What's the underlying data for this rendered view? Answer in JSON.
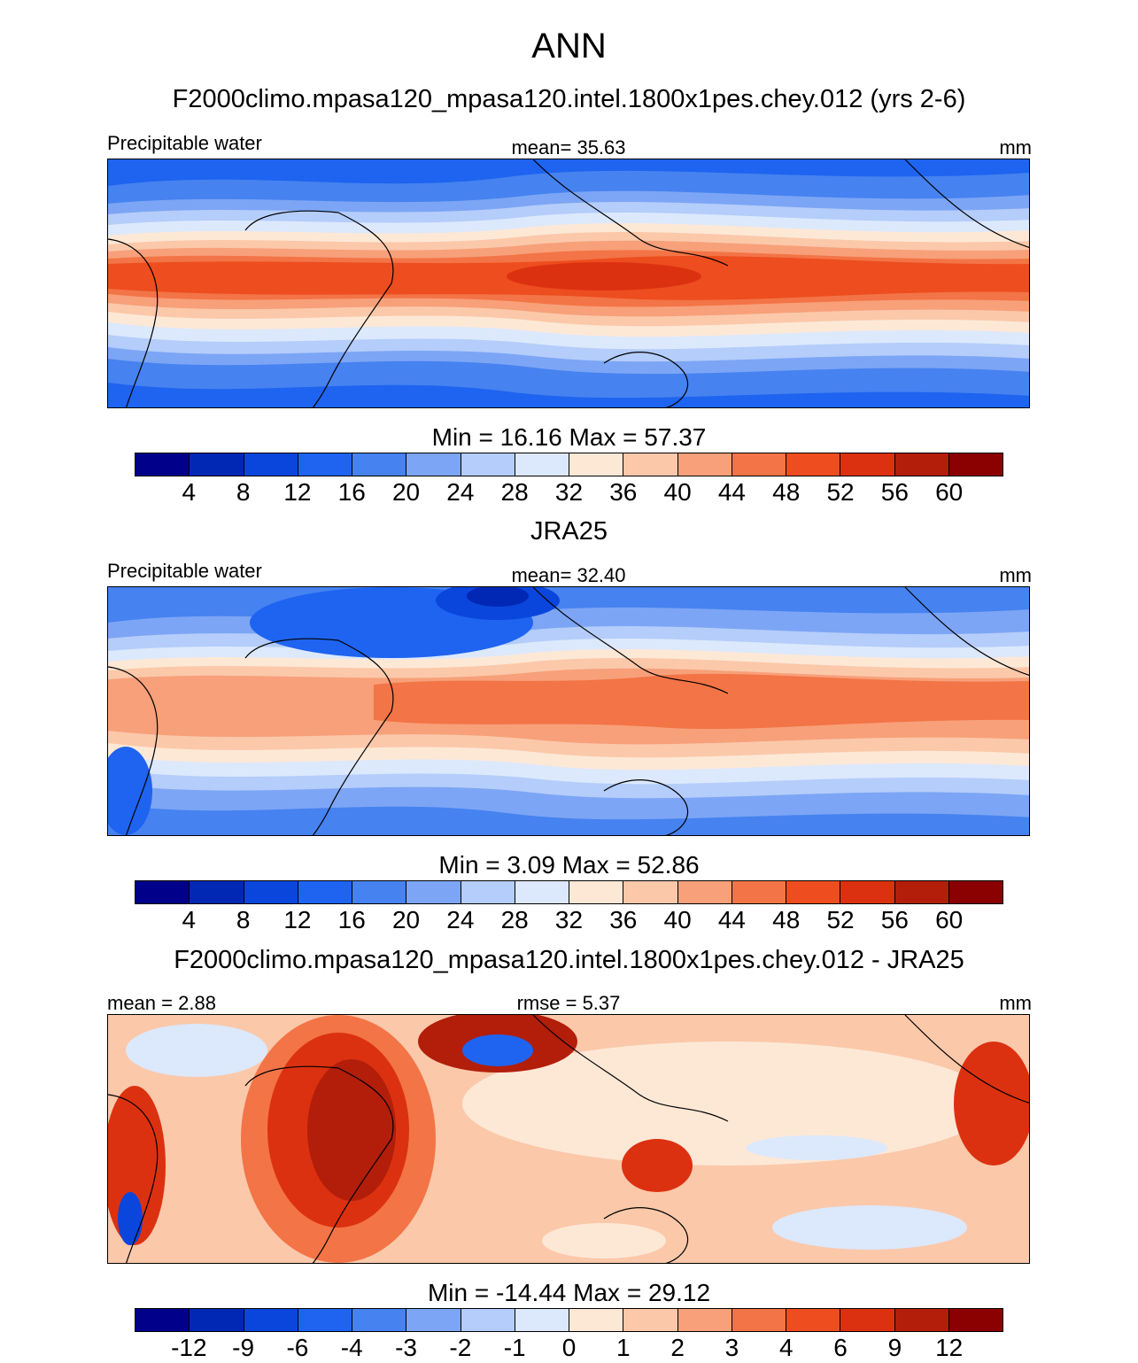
{
  "title": "ANN",
  "colors": [
    "#00008b",
    "#0028b4",
    "#0a46dc",
    "#1e64f0",
    "#4682f0",
    "#7ca5f5",
    "#b4cdfa",
    "#dce8fc",
    "#fde8d6",
    "#fbc8aa",
    "#f7a07a",
    "#f37446",
    "#ed4d1f",
    "#dc3110",
    "#b21e0a",
    "#8b0000"
  ],
  "panels": [
    {
      "title": "F2000climo.mpasa120_mpasa120.intel.1800x1pes.chey.012 (yrs 2-6)",
      "left_label": "Precipitable water",
      "mid_label": "mean=  35.63",
      "right_label": "mm",
      "minmax": "Min =  16.16 Max =  57.37",
      "ticks": [
        "4",
        "8",
        "12",
        "16",
        "20",
        "24",
        "28",
        "32",
        "36",
        "40",
        "44",
        "48",
        "52",
        "56",
        "60"
      ]
    },
    {
      "title": "JRA25",
      "left_label": "Precipitable water",
      "mid_label": "mean=  32.40",
      "right_label": "mm",
      "minmax": "Min =   3.09 Max =  52.86",
      "ticks": [
        "4",
        "8",
        "12",
        "16",
        "20",
        "24",
        "28",
        "32",
        "36",
        "40",
        "44",
        "48",
        "52",
        "56",
        "60"
      ]
    },
    {
      "title": "F2000climo.mpasa120_mpasa120.intel.1800x1pes.chey.012 - JRA25",
      "left_label": "mean =   2.88",
      "mid_label": "rmse =   5.37",
      "right_label": "mm",
      "minmax": "Min = -14.44 Max =  29.12",
      "ticks": [
        "-12",
        "-9",
        "-6",
        "-4",
        "-3",
        "-2",
        "-1",
        "0",
        "1",
        "2",
        "3",
        "4",
        "6",
        "9",
        "12"
      ]
    }
  ]
}
